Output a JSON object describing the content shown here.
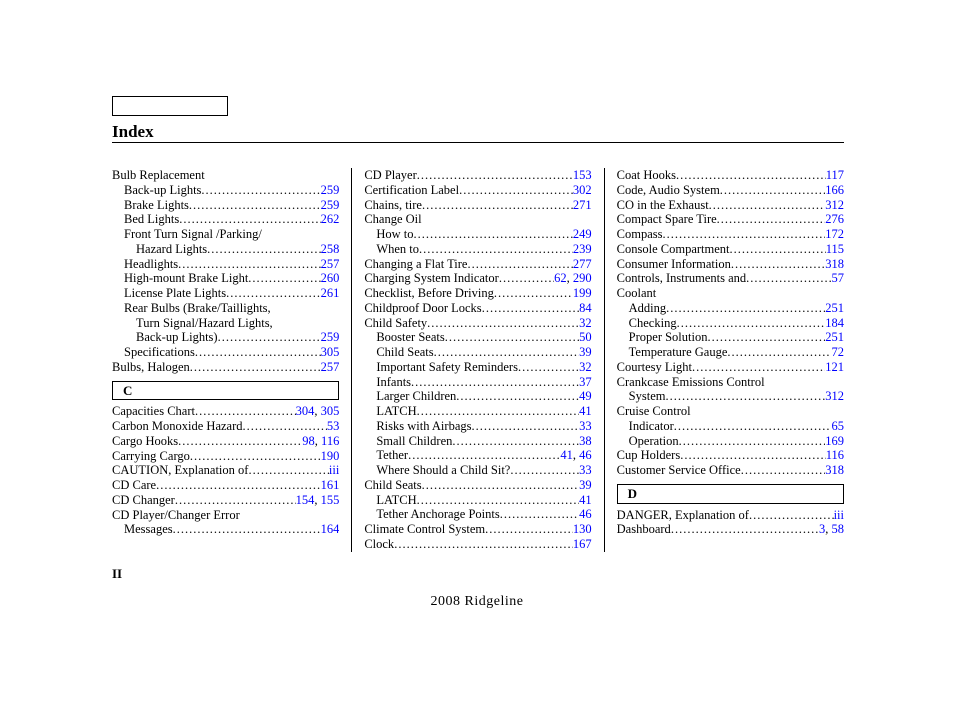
{
  "title": "Index",
  "page_roman": "II",
  "footer": "2008  Ridgeline",
  "letters": {
    "C": "C",
    "D": "D"
  },
  "columns": [
    [
      {
        "label": "Bulb Replacement",
        "indent": 0,
        "noleader": true
      },
      {
        "label": "Back-up Lights",
        "indent": 1,
        "pages": [
          "259"
        ]
      },
      {
        "label": "Brake Lights",
        "indent": 1,
        "pages": [
          "259"
        ]
      },
      {
        "label": "Bed Lights",
        "indent": 1,
        "pages": [
          "262"
        ]
      },
      {
        "label": "Front Turn Signal /Parking/",
        "indent": 1,
        "noleader": true
      },
      {
        "label": "Hazard Lights",
        "indent": 2,
        "pages": [
          "258"
        ]
      },
      {
        "label": "Headlights",
        "indent": 1,
        "pages": [
          "257"
        ]
      },
      {
        "label": "High-mount Brake Light",
        "indent": 1,
        "pages": [
          "260"
        ]
      },
      {
        "label": "License Plate Lights",
        "indent": 1,
        "pages": [
          "261"
        ]
      },
      {
        "label": "Rear Bulbs (Brake/Taillights,",
        "indent": 1,
        "noleader": true
      },
      {
        "label": "Turn Signal/Hazard Lights,",
        "indent": 2,
        "noleader": true
      },
      {
        "label": "Back-up Lights)",
        "indent": 2,
        "pages": [
          "259"
        ]
      },
      {
        "label": "Specifications",
        "indent": 1,
        "pages": [
          "305"
        ]
      },
      {
        "label": "Bulbs, Halogen",
        "indent": 0,
        "pages": [
          "257"
        ]
      },
      {
        "letterbox": "C"
      },
      {
        "label": "Capacities Chart",
        "indent": 0,
        "pages": [
          "304",
          "305"
        ]
      },
      {
        "label": "Carbon Monoxide Hazard",
        "indent": 0,
        "pages": [
          "53"
        ]
      },
      {
        "label": "Cargo Hooks",
        "indent": 0,
        "pages": [
          "98",
          "116"
        ]
      },
      {
        "label": "Carrying Cargo",
        "indent": 0,
        "pages": [
          "190"
        ]
      },
      {
        "label": "CAUTION, Explanation of",
        "indent": 0,
        "pages": [
          "iii"
        ]
      },
      {
        "label": "CD Care",
        "indent": 0,
        "pages": [
          "161"
        ]
      },
      {
        "label": "CD Changer",
        "indent": 0,
        "pages": [
          "154",
          "155"
        ]
      },
      {
        "label": "CD Player/Changer Error",
        "indent": 0,
        "noleader": true
      },
      {
        "label": "Messages",
        "indent": 1,
        "pages": [
          "164"
        ]
      }
    ],
    [
      {
        "label": "CD Player",
        "indent": 0,
        "pages": [
          "153"
        ]
      },
      {
        "label": "Certification Label",
        "indent": 0,
        "pages": [
          "302"
        ]
      },
      {
        "label": "Chains, tire",
        "indent": 0,
        "pages": [
          "271"
        ]
      },
      {
        "label": "Change Oil",
        "indent": 0,
        "noleader": true
      },
      {
        "label": "How to",
        "indent": 1,
        "pages": [
          "249"
        ]
      },
      {
        "label": "When to",
        "indent": 1,
        "pages": [
          "239"
        ]
      },
      {
        "label": "Changing a Flat Tire",
        "indent": 0,
        "pages": [
          "277"
        ]
      },
      {
        "label": "Charging System Indicator",
        "indent": 0,
        "pages": [
          "62",
          "290"
        ]
      },
      {
        "label": "Checklist, Before Driving",
        "indent": 0,
        "pages": [
          "199"
        ]
      },
      {
        "label": "Childproof Door Locks",
        "indent": 0,
        "pages": [
          "84"
        ]
      },
      {
        "label": "Child Safety",
        "indent": 0,
        "pages": [
          "32"
        ]
      },
      {
        "label": "Booster Seats",
        "indent": 1,
        "pages": [
          "50"
        ]
      },
      {
        "label": "Child Seats",
        "indent": 1,
        "pages": [
          "39"
        ]
      },
      {
        "label": "Important Safety Reminders",
        "indent": 1,
        "pages": [
          "32"
        ]
      },
      {
        "label": "Infants",
        "indent": 1,
        "pages": [
          "37"
        ]
      },
      {
        "label": "Larger Children",
        "indent": 1,
        "pages": [
          "49"
        ]
      },
      {
        "label": "LATCH",
        "indent": 1,
        "pages": [
          "41"
        ]
      },
      {
        "label": "Risks with Airbags",
        "indent": 1,
        "pages": [
          "33"
        ]
      },
      {
        "label": "Small Children",
        "indent": 1,
        "pages": [
          "38"
        ]
      },
      {
        "label": "Tether",
        "indent": 1,
        "pages": [
          "41",
          "46"
        ]
      },
      {
        "label": "Where Should a Child Sit?",
        "indent": 1,
        "pages": [
          "33"
        ]
      },
      {
        "label": "Child Seats",
        "indent": 0,
        "pages": [
          "39"
        ]
      },
      {
        "label": "LATCH",
        "indent": 1,
        "pages": [
          "41"
        ]
      },
      {
        "label": "Tether Anchorage Points",
        "indent": 1,
        "pages": [
          "46"
        ]
      },
      {
        "label": "Climate Control System",
        "indent": 0,
        "pages": [
          "130"
        ]
      },
      {
        "label": "Clock",
        "indent": 0,
        "pages": [
          "167"
        ]
      }
    ],
    [
      {
        "label": "Coat Hooks",
        "indent": 0,
        "pages": [
          "117"
        ]
      },
      {
        "label": "Code, Audio System",
        "indent": 0,
        "pages": [
          "166"
        ]
      },
      {
        "label": "CO in the Exhaust",
        "indent": 0,
        "pages": [
          "312"
        ]
      },
      {
        "label": "Compact Spare Tire",
        "indent": 0,
        "pages": [
          "276"
        ]
      },
      {
        "label": "Compass",
        "indent": 0,
        "pages": [
          "172"
        ]
      },
      {
        "label": "Console Compartment",
        "indent": 0,
        "pages": [
          "115"
        ]
      },
      {
        "label": "Consumer Information",
        "indent": 0,
        "pages": [
          "318"
        ]
      },
      {
        "label": "Controls, Instruments and",
        "indent": 0,
        "pages": [
          "57"
        ]
      },
      {
        "label": "Coolant",
        "indent": 0,
        "noleader": true
      },
      {
        "label": "Adding",
        "indent": 1,
        "pages": [
          "251"
        ]
      },
      {
        "label": "Checking",
        "indent": 1,
        "pages": [
          "184"
        ]
      },
      {
        "label": "Proper Solution",
        "indent": 1,
        "pages": [
          "251"
        ]
      },
      {
        "label": "Temperature Gauge",
        "indent": 1,
        "pages": [
          "72"
        ]
      },
      {
        "label": "Courtesy Light",
        "indent": 0,
        "pages": [
          "121"
        ]
      },
      {
        "label": "Crankcase Emissions Control",
        "indent": 0,
        "noleader": true
      },
      {
        "label": "System",
        "indent": 1,
        "pages": [
          "312"
        ]
      },
      {
        "label": "Cruise Control",
        "indent": 0,
        "noleader": true
      },
      {
        "label": "Indicator",
        "indent": 1,
        "pages": [
          "65"
        ]
      },
      {
        "label": "Operation",
        "indent": 1,
        "pages": [
          "169"
        ]
      },
      {
        "label": "Cup Holders",
        "indent": 0,
        "pages": [
          "116"
        ]
      },
      {
        "label": "Customer Service Office",
        "indent": 0,
        "pages": [
          "318"
        ]
      },
      {
        "letterbox": "D"
      },
      {
        "label": "DANGER, Explanation of",
        "indent": 0,
        "pages": [
          "iii"
        ]
      },
      {
        "label": "Dashboard",
        "indent": 0,
        "pages": [
          "3",
          "58"
        ]
      }
    ]
  ]
}
